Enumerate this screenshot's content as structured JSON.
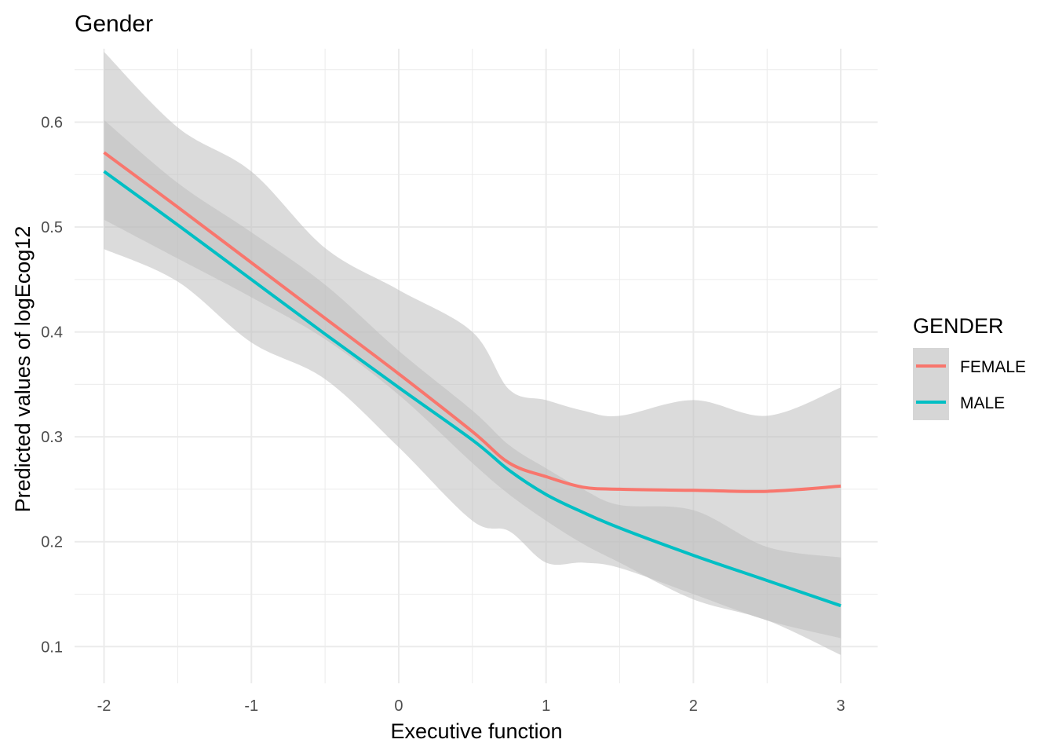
{
  "chart_data": {
    "type": "line",
    "title": "Gender",
    "xlabel": "Executive function",
    "ylabel": "Predicted values of logEcog12",
    "xlim": [
      -2.2,
      3.25
    ],
    "ylim": [
      0.065,
      0.67
    ],
    "x_ticks": [
      "-2",
      "-1",
      "0",
      "1",
      "2",
      "3"
    ],
    "y_ticks": [
      "0.1",
      "0.2",
      "0.3",
      "0.4",
      "0.5",
      "0.6"
    ],
    "grid": true,
    "legend": {
      "title": "GENDER",
      "position": "right"
    },
    "colors": {
      "FEMALE": "#f8766d",
      "MALE": "#00bfc4",
      "ribbon": "#bdbdbd",
      "grid": "#ebebeb"
    },
    "series": [
      {
        "name": "FEMALE",
        "x": [
          -2.0,
          -1.5,
          -1.0,
          -0.5,
          0.0,
          0.5,
          0.75,
          1.0,
          1.25,
          1.5,
          2.0,
          2.5,
          3.0
        ],
        "values": [
          0.571,
          0.519,
          0.466,
          0.413,
          0.36,
          0.305,
          0.275,
          0.262,
          0.252,
          0.25,
          0.249,
          0.248,
          0.253
        ],
        "ci_lower": [
          0.507,
          0.47,
          0.433,
          0.393,
          0.34,
          0.275,
          0.245,
          0.22,
          0.198,
          0.18,
          0.145,
          0.125,
          0.092
        ],
        "ci_upper": [
          0.667,
          0.595,
          0.553,
          0.48,
          0.44,
          0.4,
          0.345,
          0.335,
          0.325,
          0.32,
          0.335,
          0.32,
          0.347
        ]
      },
      {
        "name": "MALE",
        "x": [
          -2.0,
          -1.5,
          -1.0,
          -0.5,
          0.0,
          0.5,
          0.75,
          1.0,
          1.25,
          1.5,
          2.0,
          2.5,
          3.0
        ],
        "values": [
          0.553,
          0.502,
          0.45,
          0.398,
          0.347,
          0.297,
          0.268,
          0.245,
          0.228,
          0.213,
          0.187,
          0.163,
          0.139
        ],
        "ci_lower": [
          0.479,
          0.448,
          0.39,
          0.355,
          0.29,
          0.22,
          0.21,
          0.18,
          0.18,
          0.175,
          0.15,
          0.125,
          0.108
        ],
        "ci_upper": [
          0.602,
          0.542,
          0.495,
          0.445,
          0.382,
          0.325,
          0.292,
          0.27,
          0.25,
          0.235,
          0.23,
          0.195,
          0.185
        ]
      }
    ]
  }
}
